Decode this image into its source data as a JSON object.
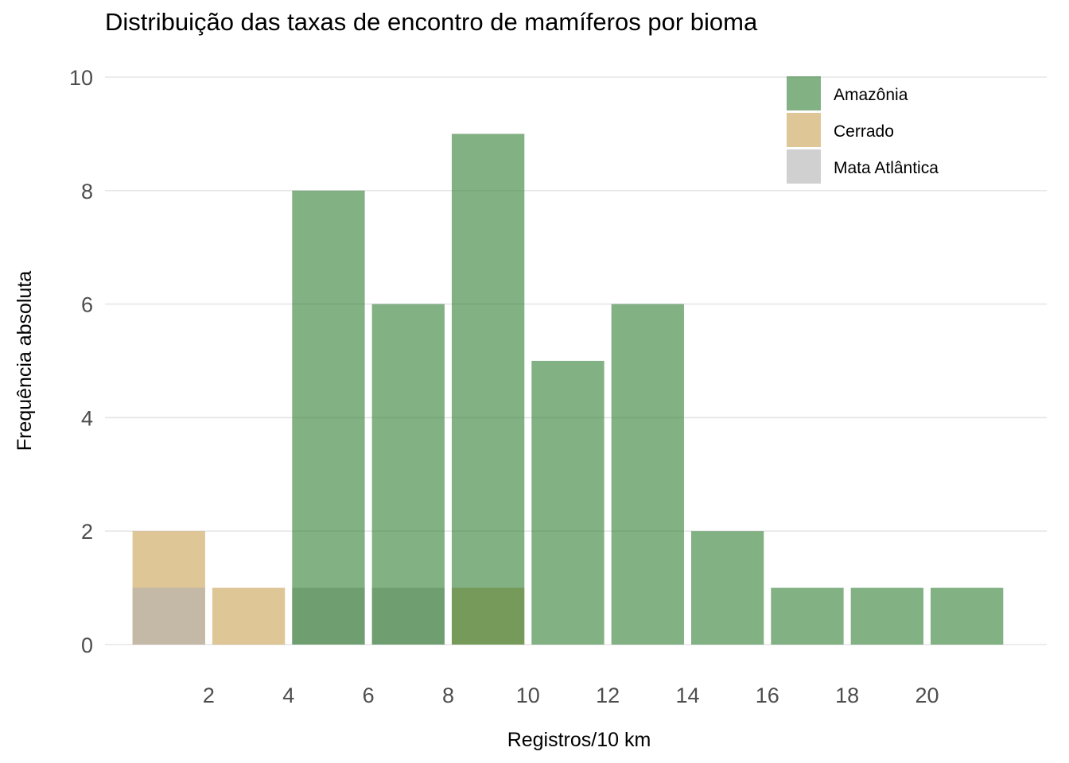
{
  "chart_data": {
    "type": "bar",
    "title": "Distribuição das taxas de encontro de mamíferos por bioma",
    "xlabel": "Registros/10 km",
    "ylabel": "Frequência absoluta",
    "xlim": [
      -0.6,
      23.0
    ],
    "ylim": [
      0,
      10
    ],
    "x_ticks": [
      2,
      4,
      6,
      8,
      10,
      12,
      14,
      16,
      18,
      20
    ],
    "y_ticks": [
      0,
      2,
      4,
      6,
      8,
      10
    ],
    "grid": "horizontal major only",
    "legend_position": "top-right inside",
    "bin_width": 2,
    "bin_centers": [
      1,
      3,
      5,
      7,
      9,
      11,
      13,
      15,
      17,
      19,
      21
    ],
    "series": [
      {
        "name": "Cerrado",
        "color": "#C8A050",
        "opacity": 0.6,
        "values": [
          2,
          1,
          0,
          0,
          1,
          0,
          0,
          0,
          0,
          0,
          0
        ]
      },
      {
        "name": "Mata Atlântica",
        "color": "#B0B0B0",
        "opacity": 0.6,
        "values": [
          1,
          0,
          1,
          1,
          0,
          0,
          0,
          0,
          0,
          0,
          0
        ]
      },
      {
        "name": "Amazônia",
        "color": "#2E7D32",
        "opacity": 0.6,
        "values": [
          0,
          0,
          8,
          6,
          9,
          5,
          6,
          2,
          1,
          1,
          1
        ]
      }
    ],
    "legend_order": [
      "Amazônia",
      "Cerrado",
      "Mata Atlântica"
    ]
  }
}
